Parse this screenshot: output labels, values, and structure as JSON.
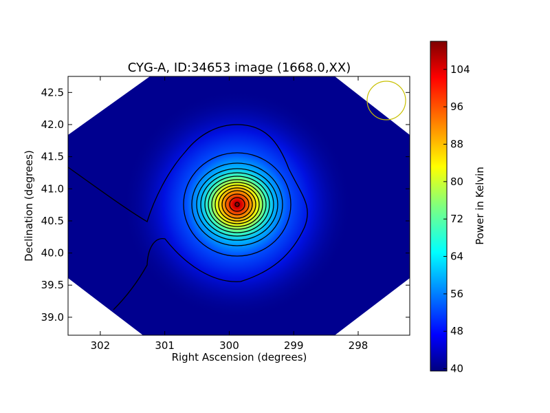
{
  "chart_data": {
    "type": "heatmap",
    "title": "CYG-A, ID:34653 image (1668.0,XX)",
    "xlabel": "Right Ascension (degrees)",
    "ylabel": "Declination (degrees)",
    "xlim": [
      302.5,
      297.2
    ],
    "ylim": [
      38.72,
      42.75
    ],
    "x_ticks": [
      "302",
      "301",
      "300",
      "299",
      "298"
    ],
    "x_tick_values": [
      302,
      301,
      300,
      299,
      298
    ],
    "y_ticks": [
      "39.0",
      "39.5",
      "40.0",
      "40.5",
      "41.0",
      "41.5",
      "42.0",
      "42.5"
    ],
    "y_tick_values": [
      39.0,
      39.5,
      40.0,
      40.5,
      41.0,
      41.5,
      42.0,
      42.5
    ],
    "source": {
      "ra": 299.87,
      "dec": 40.74,
      "peak": 110,
      "background": 40
    },
    "beam": {
      "ra": 297.6,
      "dec": 42.35
    },
    "colorbar": {
      "label": "Power in Kelvin",
      "min": 39.5,
      "max": 110,
      "ticks": [
        "40",
        "48",
        "56",
        "64",
        "72",
        "80",
        "88",
        "96",
        "104"
      ],
      "tick_values": [
        40,
        48,
        56,
        64,
        72,
        80,
        88,
        96,
        104
      ],
      "colormap": "jet"
    },
    "grid": false
  }
}
